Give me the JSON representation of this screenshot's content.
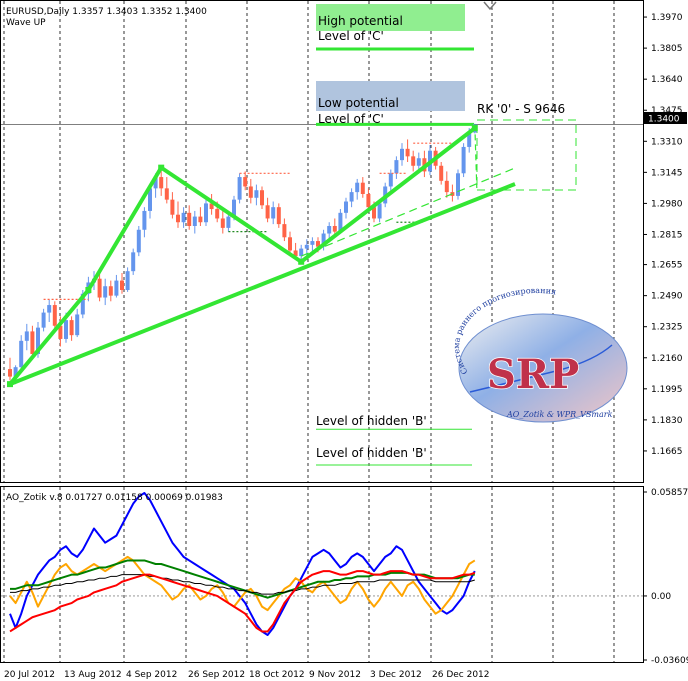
{
  "window": {
    "symbol_line": "EURUSD,Daily  1.3357 1.3403 1.3352 1.3400",
    "indicator_name": "Wave UP"
  },
  "annotations": {
    "high_potential": "High potential",
    "level_c_top": "Level of 'C'",
    "low_potential": "Low potential",
    "level_c_bottom": "Level of 'C'",
    "rk_label": "RK '0' - S 9646",
    "hidden_b_1": "Level of hidden 'B'",
    "hidden_b_2": "Level of hidden 'B'",
    "price_badge": "1.3400"
  },
  "logo": {
    "text": "SRP",
    "arc_text": "Система раннего прогнозирования",
    "caption": "AO_Zotik & WPR_VSmark"
  },
  "colors": {
    "bull": "#6495ed",
    "bear": "#ff6347",
    "wave": "#33e633",
    "potential_high": "#90ee90",
    "potential_low": "#b0c4de",
    "ao_blue": "#0000ff",
    "ao_red": "#ff0000",
    "ao_orange": "#ffa500",
    "ao_green": "#008000",
    "ao_black": "#000000",
    "ao_darkred": "#800000"
  },
  "chart_data": [
    {
      "type": "bar",
      "title": "EURUSD,Daily  1.3357 1.3403 1.3352 1.3400",
      "subtitle": "Wave UP",
      "ylim": [
        1.15,
        1.405
      ],
      "y_ticks": [
        "1.3970",
        "1.3805",
        "1.3640",
        "1.3475",
        "1.3310",
        "1.3145",
        "1.2980",
        "1.2815",
        "1.2655",
        "1.2490",
        "1.2325",
        "1.2160",
        "1.1995",
        "1.1830",
        "1.1665"
      ],
      "x_ticks": [
        "20 Jul 2012",
        "13 Aug 2012",
        "4 Sep 2012",
        "26 Sep 2012",
        "18 Oct 2012",
        "9 Nov 2012",
        "3 Dec 2012",
        "26 Dec 2012"
      ],
      "current_price": 1.34,
      "wave_points": [
        {
          "x": 0,
          "y": 1.202
        },
        {
          "x": 14,
          "y": 1.252
        },
        {
          "x": 27,
          "y": 1.317
        },
        {
          "x": 52,
          "y": 1.267
        },
        {
          "x": 83,
          "y": 1.338
        }
      ],
      "levels": {
        "level_c_high": 1.38,
        "level_c_low": 1.34,
        "hidden_b_1": 1.178,
        "hidden_b_2": 1.159
      },
      "candles": [
        {
          "o": 1.21,
          "h": 1.216,
          "l": 1.204,
          "c": 1.206
        },
        {
          "o": 1.206,
          "h": 1.212,
          "l": 1.202,
          "c": 1.211
        },
        {
          "o": 1.211,
          "h": 1.228,
          "l": 1.208,
          "c": 1.225
        },
        {
          "o": 1.225,
          "h": 1.234,
          "l": 1.22,
          "c": 1.23
        },
        {
          "o": 1.23,
          "h": 1.233,
          "l": 1.215,
          "c": 1.218
        },
        {
          "o": 1.218,
          "h": 1.235,
          "l": 1.216,
          "c": 1.232
        },
        {
          "o": 1.232,
          "h": 1.242,
          "l": 1.23,
          "c": 1.24
        },
        {
          "o": 1.24,
          "h": 1.247,
          "l": 1.235,
          "c": 1.244
        },
        {
          "o": 1.244,
          "h": 1.246,
          "l": 1.23,
          "c": 1.233
        },
        {
          "o": 1.233,
          "h": 1.238,
          "l": 1.222,
          "c": 1.226
        },
        {
          "o": 1.226,
          "h": 1.24,
          "l": 1.224,
          "c": 1.236
        },
        {
          "o": 1.236,
          "h": 1.238,
          "l": 1.225,
          "c": 1.228
        },
        {
          "o": 1.228,
          "h": 1.242,
          "l": 1.227,
          "c": 1.239
        },
        {
          "o": 1.239,
          "h": 1.252,
          "l": 1.237,
          "c": 1.25
        },
        {
          "o": 1.25,
          "h": 1.259,
          "l": 1.246,
          "c": 1.256
        },
        {
          "o": 1.256,
          "h": 1.262,
          "l": 1.252,
          "c": 1.258
        },
        {
          "o": 1.258,
          "h": 1.262,
          "l": 1.246,
          "c": 1.248
        },
        {
          "o": 1.248,
          "h": 1.258,
          "l": 1.244,
          "c": 1.254
        },
        {
          "o": 1.254,
          "h": 1.257,
          "l": 1.246,
          "c": 1.249
        },
        {
          "o": 1.249,
          "h": 1.26,
          "l": 1.248,
          "c": 1.257
        },
        {
          "o": 1.257,
          "h": 1.261,
          "l": 1.25,
          "c": 1.252
        },
        {
          "o": 1.252,
          "h": 1.264,
          "l": 1.251,
          "c": 1.262
        },
        {
          "o": 1.262,
          "h": 1.274,
          "l": 1.26,
          "c": 1.272
        },
        {
          "o": 1.272,
          "h": 1.286,
          "l": 1.27,
          "c": 1.284
        },
        {
          "o": 1.284,
          "h": 1.296,
          "l": 1.28,
          "c": 1.294
        },
        {
          "o": 1.294,
          "h": 1.308,
          "l": 1.29,
          "c": 1.306
        },
        {
          "o": 1.306,
          "h": 1.314,
          "l": 1.301,
          "c": 1.312
        },
        {
          "o": 1.312,
          "h": 1.317,
          "l": 1.302,
          "c": 1.306
        },
        {
          "o": 1.306,
          "h": 1.312,
          "l": 1.298,
          "c": 1.3
        },
        {
          "o": 1.3,
          "h": 1.304,
          "l": 1.29,
          "c": 1.292
        },
        {
          "o": 1.292,
          "h": 1.299,
          "l": 1.285,
          "c": 1.288
        },
        {
          "o": 1.288,
          "h": 1.296,
          "l": 1.285,
          "c": 1.293
        },
        {
          "o": 1.293,
          "h": 1.297,
          "l": 1.284,
          "c": 1.286
        },
        {
          "o": 1.286,
          "h": 1.294,
          "l": 1.282,
          "c": 1.291
        },
        {
          "o": 1.291,
          "h": 1.296,
          "l": 1.286,
          "c": 1.288
        },
        {
          "o": 1.288,
          "h": 1.3,
          "l": 1.286,
          "c": 1.298
        },
        {
          "o": 1.298,
          "h": 1.303,
          "l": 1.292,
          "c": 1.295
        },
        {
          "o": 1.295,
          "h": 1.299,
          "l": 1.288,
          "c": 1.29
        },
        {
          "o": 1.29,
          "h": 1.295,
          "l": 1.282,
          "c": 1.285
        },
        {
          "o": 1.285,
          "h": 1.293,
          "l": 1.283,
          "c": 1.291
        },
        {
          "o": 1.291,
          "h": 1.302,
          "l": 1.289,
          "c": 1.3
        },
        {
          "o": 1.3,
          "h": 1.314,
          "l": 1.298,
          "c": 1.312
        },
        {
          "o": 1.312,
          "h": 1.315,
          "l": 1.305,
          "c": 1.307
        },
        {
          "o": 1.307,
          "h": 1.311,
          "l": 1.298,
          "c": 1.301
        },
        {
          "o": 1.301,
          "h": 1.308,
          "l": 1.297,
          "c": 1.305
        },
        {
          "o": 1.305,
          "h": 1.307,
          "l": 1.295,
          "c": 1.297
        },
        {
          "o": 1.297,
          "h": 1.301,
          "l": 1.288,
          "c": 1.29
        },
        {
          "o": 1.29,
          "h": 1.299,
          "l": 1.287,
          "c": 1.296
        },
        {
          "o": 1.296,
          "h": 1.298,
          "l": 1.285,
          "c": 1.287
        },
        {
          "o": 1.287,
          "h": 1.29,
          "l": 1.278,
          "c": 1.28
        },
        {
          "o": 1.28,
          "h": 1.283,
          "l": 1.271,
          "c": 1.273
        },
        {
          "o": 1.273,
          "h": 1.277,
          "l": 1.268,
          "c": 1.27
        },
        {
          "o": 1.27,
          "h": 1.276,
          "l": 1.267,
          "c": 1.274
        },
        {
          "o": 1.274,
          "h": 1.279,
          "l": 1.27,
          "c": 1.276
        },
        {
          "o": 1.276,
          "h": 1.28,
          "l": 1.272,
          "c": 1.278
        },
        {
          "o": 1.278,
          "h": 1.28,
          "l": 1.272,
          "c": 1.275
        },
        {
          "o": 1.275,
          "h": 1.284,
          "l": 1.273,
          "c": 1.282
        },
        {
          "o": 1.282,
          "h": 1.288,
          "l": 1.279,
          "c": 1.286
        },
        {
          "o": 1.286,
          "h": 1.29,
          "l": 1.28,
          "c": 1.283
        },
        {
          "o": 1.283,
          "h": 1.295,
          "l": 1.282,
          "c": 1.293
        },
        {
          "o": 1.293,
          "h": 1.301,
          "l": 1.29,
          "c": 1.299
        },
        {
          "o": 1.299,
          "h": 1.306,
          "l": 1.296,
          "c": 1.304
        },
        {
          "o": 1.304,
          "h": 1.311,
          "l": 1.3,
          "c": 1.309
        },
        {
          "o": 1.309,
          "h": 1.312,
          "l": 1.301,
          "c": 1.303
        },
        {
          "o": 1.303,
          "h": 1.306,
          "l": 1.294,
          "c": 1.296
        },
        {
          "o": 1.296,
          "h": 1.299,
          "l": 1.288,
          "c": 1.29
        },
        {
          "o": 1.29,
          "h": 1.3,
          "l": 1.288,
          "c": 1.298
        },
        {
          "o": 1.298,
          "h": 1.309,
          "l": 1.296,
          "c": 1.307
        },
        {
          "o": 1.307,
          "h": 1.316,
          "l": 1.304,
          "c": 1.314
        },
        {
          "o": 1.314,
          "h": 1.323,
          "l": 1.311,
          "c": 1.321
        },
        {
          "o": 1.321,
          "h": 1.33,
          "l": 1.318,
          "c": 1.327
        },
        {
          "o": 1.327,
          "h": 1.332,
          "l": 1.32,
          "c": 1.323
        },
        {
          "o": 1.323,
          "h": 1.326,
          "l": 1.315,
          "c": 1.318
        },
        {
          "o": 1.318,
          "h": 1.325,
          "l": 1.314,
          "c": 1.322
        },
        {
          "o": 1.322,
          "h": 1.326,
          "l": 1.312,
          "c": 1.315
        },
        {
          "o": 1.315,
          "h": 1.329,
          "l": 1.313,
          "c": 1.326
        },
        {
          "o": 1.326,
          "h": 1.328,
          "l": 1.316,
          "c": 1.318
        },
        {
          "o": 1.318,
          "h": 1.32,
          "l": 1.308,
          "c": 1.31
        },
        {
          "o": 1.31,
          "h": 1.315,
          "l": 1.301,
          "c": 1.304
        },
        {
          "o": 1.304,
          "h": 1.308,
          "l": 1.299,
          "c": 1.302
        },
        {
          "o": 1.302,
          "h": 1.316,
          "l": 1.3,
          "c": 1.314
        },
        {
          "o": 1.314,
          "h": 1.33,
          "l": 1.312,
          "c": 1.328
        },
        {
          "o": 1.328,
          "h": 1.338,
          "l": 1.325,
          "c": 1.336
        },
        {
          "o": 1.3357,
          "h": 1.3403,
          "l": 1.3352,
          "c": 1.34
        }
      ]
    },
    {
      "type": "line",
      "title": "AO_Zotik v.8 0.01727 0.01158 0.00069 0.01983",
      "ylim": [
        -0.03609,
        0.05857
      ],
      "y_ticks": [
        "0.05857",
        "0.00",
        "-0.03609"
      ],
      "series": [
        {
          "color": "blue",
          "values": [
            -0.01,
            -0.018,
            -0.01,
            0.0,
            0.006,
            0.012,
            0.016,
            0.02,
            0.022,
            0.026,
            0.028,
            0.024,
            0.022,
            0.026,
            0.032,
            0.038,
            0.034,
            0.03,
            0.032,
            0.034,
            0.04,
            0.046,
            0.052,
            0.056,
            0.058,
            0.054,
            0.048,
            0.042,
            0.036,
            0.03,
            0.026,
            0.022,
            0.02,
            0.018,
            0.016,
            0.014,
            0.012,
            0.01,
            0.008,
            0.006,
            0.004,
            0.0,
            -0.004,
            -0.01,
            -0.016,
            -0.02,
            -0.022,
            -0.018,
            -0.012,
            -0.006,
            0.0,
            0.004,
            0.01,
            0.016,
            0.022,
            0.024,
            0.026,
            0.024,
            0.02,
            0.016,
            0.018,
            0.022,
            0.024,
            0.022,
            0.018,
            0.014,
            0.018,
            0.022,
            0.024,
            0.028,
            0.026,
            0.02,
            0.014,
            0.008,
            0.004,
            0.0,
            -0.004,
            -0.008,
            -0.01,
            -0.008,
            -0.004,
            0.0,
            0.008,
            0.014
          ]
        },
        {
          "color": "orange",
          "values": [
            0.0,
            -0.004,
            0.002,
            0.008,
            0.002,
            -0.006,
            0.0,
            0.006,
            0.012,
            0.016,
            0.018,
            0.014,
            0.012,
            0.014,
            0.016,
            0.018,
            0.016,
            0.014,
            0.016,
            0.018,
            0.02,
            0.022,
            0.02,
            0.016,
            0.012,
            0.01,
            0.008,
            0.006,
            0.002,
            -0.002,
            0.0,
            0.004,
            0.006,
            0.002,
            -0.002,
            0.0,
            0.004,
            0.006,
            0.002,
            -0.004,
            -0.006,
            -0.002,
            0.002,
            0.004,
            0.0,
            -0.006,
            -0.008,
            -0.004,
            0.0,
            0.004,
            0.006,
            0.01,
            0.008,
            0.004,
            0.002,
            0.006,
            0.008,
            0.004,
            0.0,
            -0.004,
            -0.002,
            0.004,
            0.008,
            0.004,
            -0.002,
            -0.006,
            -0.002,
            0.004,
            0.008,
            0.004,
            0.0,
            0.006,
            0.008,
            0.004,
            -0.002,
            -0.006,
            -0.01,
            -0.008,
            -0.004,
            0.0,
            0.006,
            0.012,
            0.018,
            0.02
          ]
        },
        {
          "color": "green",
          "values": [
            0.004,
            0.004,
            0.005,
            0.006,
            0.006,
            0.006,
            0.007,
            0.008,
            0.009,
            0.01,
            0.011,
            0.012,
            0.012,
            0.013,
            0.014,
            0.015,
            0.016,
            0.016,
            0.017,
            0.018,
            0.019,
            0.02,
            0.02,
            0.02,
            0.02,
            0.019,
            0.018,
            0.018,
            0.017,
            0.016,
            0.015,
            0.014,
            0.013,
            0.012,
            0.011,
            0.01,
            0.009,
            0.008,
            0.007,
            0.006,
            0.005,
            0.004,
            0.003,
            0.002,
            0.001,
            0.0,
            -0.001,
            0.0,
            0.001,
            0.002,
            0.003,
            0.004,
            0.005,
            0.006,
            0.007,
            0.008,
            0.008,
            0.008,
            0.009,
            0.009,
            0.01,
            0.01,
            0.011,
            0.011,
            0.011,
            0.012,
            0.012,
            0.012,
            0.013,
            0.013,
            0.013,
            0.013,
            0.012,
            0.012,
            0.012,
            0.011,
            0.01,
            0.01,
            0.01,
            0.01,
            0.01,
            0.011,
            0.012,
            0.012
          ]
        },
        {
          "color": "black",
          "values": [
            0.002,
            0.002,
            0.003,
            0.003,
            0.004,
            0.004,
            0.005,
            0.005,
            0.006,
            0.006,
            0.007,
            0.007,
            0.008,
            0.008,
            0.009,
            0.009,
            0.01,
            0.01,
            0.011,
            0.011,
            0.012,
            0.012,
            0.012,
            0.012,
            0.012,
            0.011,
            0.011,
            0.01,
            0.01,
            0.009,
            0.009,
            0.008,
            0.008,
            0.007,
            0.007,
            0.006,
            0.006,
            0.005,
            0.005,
            0.004,
            0.004,
            0.003,
            0.003,
            0.002,
            0.002,
            0.001,
            0.001,
            0.001,
            0.002,
            0.002,
            0.003,
            0.003,
            0.004,
            0.004,
            0.005,
            0.005,
            0.006,
            0.006,
            0.006,
            0.007,
            0.007,
            0.007,
            0.008,
            0.008,
            0.008,
            0.008,
            0.009,
            0.009,
            0.009,
            0.009,
            0.009,
            0.009,
            0.009,
            0.009,
            0.009,
            0.009,
            0.008,
            0.008,
            0.008,
            0.008,
            0.008,
            0.008,
            0.008,
            0.009
          ]
        },
        {
          "color": "red",
          "values": [
            -0.02,
            -0.018,
            -0.016,
            -0.014,
            -0.012,
            -0.011,
            -0.01,
            -0.009,
            -0.008,
            -0.006,
            -0.005,
            -0.004,
            -0.002,
            -0.001,
            0.0,
            0.002,
            0.003,
            0.004,
            0.005,
            0.006,
            0.008,
            0.009,
            0.01,
            0.011,
            0.012,
            0.012,
            0.011,
            0.01,
            0.009,
            0.008,
            0.007,
            0.006,
            0.005,
            0.004,
            0.003,
            0.002,
            0.001,
            0.0,
            -0.002,
            -0.004,
            -0.006,
            -0.008,
            -0.01,
            -0.014,
            -0.018,
            -0.02,
            -0.02,
            -0.016,
            -0.01,
            -0.004,
            0.0,
            0.004,
            0.008,
            0.01,
            0.012,
            0.013,
            0.014,
            0.014,
            0.013,
            0.012,
            0.012,
            0.013,
            0.014,
            0.014,
            0.013,
            0.012,
            0.012,
            0.013,
            0.014,
            0.014,
            0.014,
            0.013,
            0.012,
            0.012,
            0.011,
            0.01,
            0.01,
            0.01,
            0.01,
            0.01,
            0.011,
            0.012,
            0.012,
            0.013
          ]
        }
      ]
    }
  ]
}
